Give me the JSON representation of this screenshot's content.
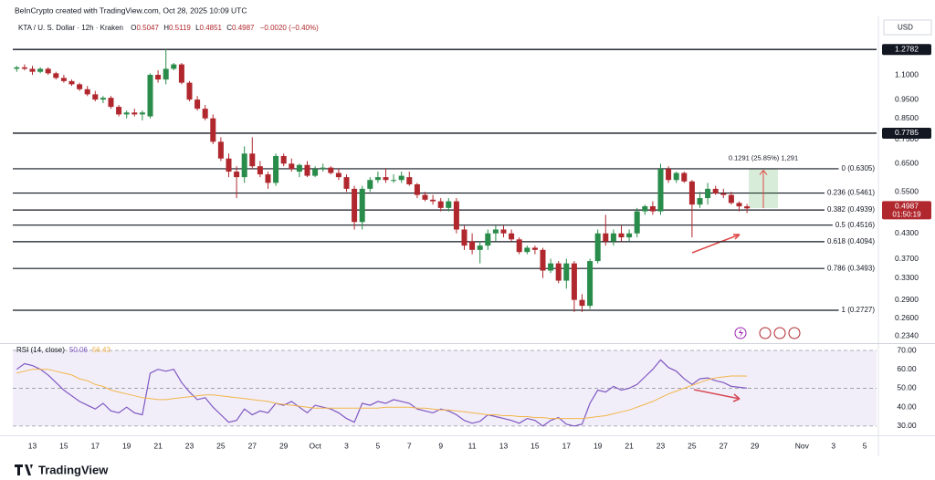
{
  "header": {
    "credit": "BeInCrypto created with TradingView.com, Oct 28, 2025 10:09 UTC",
    "symbol": "KTA / U. S. Dollar · 12h · Kraken",
    "ohlc": [
      {
        "key": "O",
        "value": "0.5047"
      },
      {
        "key": "H",
        "value": "0.5119"
      },
      {
        "key": "L",
        "value": "0.4851"
      },
      {
        "key": "C",
        "value": "0.4987"
      }
    ],
    "change": "−0.0020 (−0.40%)",
    "currency": "USD"
  },
  "footer": {
    "brand": "TradingView"
  },
  "chart_data": [
    {
      "type": "candlestick",
      "log_scale": true,
      "up_color": "#2a8c4a",
      "down_color": "#b0282e",
      "xlim": [
        -0.5,
        109.5
      ],
      "xticks": [
        {
          "value": 2,
          "label": "13"
        },
        {
          "value": 6,
          "label": "15"
        },
        {
          "value": 10,
          "label": "17"
        },
        {
          "value": 14,
          "label": "19"
        },
        {
          "value": 18,
          "label": "21"
        },
        {
          "value": 22,
          "label": "23"
        },
        {
          "value": 26,
          "label": "25"
        },
        {
          "value": 30,
          "label": "27"
        },
        {
          "value": 34,
          "label": "29"
        },
        {
          "value": 38,
          "label": "Oct"
        },
        {
          "value": 42,
          "label": "3"
        },
        {
          "value": 46,
          "label": "5"
        },
        {
          "value": 50,
          "label": "7"
        },
        {
          "value": 54,
          "label": "9"
        },
        {
          "value": 58,
          "label": "11"
        },
        {
          "value": 62,
          "label": "13"
        },
        {
          "value": 66,
          "label": "15"
        },
        {
          "value": 70,
          "label": "17"
        },
        {
          "value": 74,
          "label": "19"
        },
        {
          "value": 78,
          "label": "21"
        },
        {
          "value": 82,
          "label": "23"
        },
        {
          "value": 86,
          "label": "25"
        },
        {
          "value": 90,
          "label": "27"
        },
        {
          "value": 94,
          "label": "29"
        },
        {
          "value": 100,
          "label": "Nov"
        },
        {
          "value": 104,
          "label": "3"
        },
        {
          "value": 108,
          "label": "5"
        }
      ],
      "ylim": [
        0.2257,
        1.538
      ],
      "yticks": [
        {
          "value": 1.1,
          "label": "1.1000"
        },
        {
          "value": 0.95,
          "label": "0.9500"
        },
        {
          "value": 0.85,
          "label": "0.8500"
        },
        {
          "value": 0.75,
          "label": "0.7500"
        },
        {
          "value": 0.65,
          "label": "0.6500"
        },
        {
          "value": 0.55,
          "label": "0.5500"
        },
        {
          "value": 0.43,
          "label": "0.4300"
        },
        {
          "value": 0.37,
          "label": "0.3700"
        },
        {
          "value": 0.33,
          "label": "0.3300"
        },
        {
          "value": 0.29,
          "label": "0.2900"
        },
        {
          "value": 0.26,
          "label": "0.2600"
        },
        {
          "value": 0.234,
          "label": "0.2340"
        }
      ],
      "lines": [
        1.2782,
        0.7785
      ],
      "fib_levels": [
        {
          "value": 0.6305,
          "label": "0 (0.6305)"
        },
        {
          "value": 0.5461,
          "label": "0.236 (0.5461)"
        },
        {
          "value": 0.4939,
          "label": "0.382 (0.4939)"
        },
        {
          "value": 0.4516,
          "label": "0.5 (0.4516)"
        },
        {
          "value": 0.4094,
          "label": "0.618 (0.4094)"
        },
        {
          "value": 0.3493,
          "label": "0.786 (0.3493)"
        },
        {
          "value": 0.2727,
          "label": "1 (0.2727)"
        }
      ],
      "last_price": 0.4987,
      "countdown": "01:50:19",
      "measure": {
        "label": "0.1291 (25.85%) 1,291",
        "range": [
          0.4994,
          0.6285
        ]
      },
      "open": [
        1.14,
        1.15,
        1.14,
        1.12,
        1.14,
        1.11,
        1.08,
        1.06,
        1.04,
        1.01,
        0.98,
        0.95,
        0.96,
        0.91,
        0.87,
        0.88,
        0.87,
        0.86,
        1.1,
        1.07,
        1.14,
        1.17,
        1.05,
        0.95,
        0.9,
        0.85,
        0.74,
        0.67,
        0.62,
        0.6,
        0.69,
        0.64,
        0.61,
        0.58,
        0.68,
        0.65,
        0.62,
        0.645,
        0.605,
        0.63,
        0.635,
        0.615,
        0.6,
        0.56,
        0.46,
        0.56,
        0.59,
        0.6,
        0.59,
        0.59,
        0.6,
        0.575,
        0.54,
        0.525,
        0.52,
        0.5,
        0.52,
        0.44,
        0.41,
        0.39,
        0.4,
        0.43,
        0.44,
        0.43,
        0.415,
        0.385,
        0.395,
        0.39,
        0.345,
        0.36,
        0.325,
        0.36,
        0.29,
        0.28,
        0.365,
        0.43,
        0.41,
        0.43,
        0.42,
        0.43,
        0.49,
        0.505,
        0.49,
        0.63,
        0.59,
        0.615,
        0.585,
        0.51,
        0.53,
        0.56,
        0.545,
        0.54,
        0.515,
        0.5047
      ],
      "high": [
        1.16,
        1.17,
        1.16,
        1.15,
        1.15,
        1.12,
        1.1,
        1.07,
        1.05,
        1.03,
        1.0,
        0.97,
        0.97,
        0.92,
        0.89,
        0.9,
        0.89,
        1.11,
        1.13,
        1.28,
        1.18,
        1.18,
        1.06,
        0.97,
        0.92,
        0.87,
        0.76,
        0.69,
        0.64,
        0.72,
        0.76,
        0.66,
        0.62,
        0.69,
        0.69,
        0.67,
        0.65,
        0.66,
        0.64,
        0.65,
        0.64,
        0.63,
        0.61,
        0.57,
        0.57,
        0.6,
        0.62,
        0.63,
        0.61,
        0.62,
        0.62,
        0.58,
        0.55,
        0.54,
        0.53,
        0.53,
        0.53,
        0.45,
        0.43,
        0.41,
        0.44,
        0.45,
        0.45,
        0.44,
        0.42,
        0.4,
        0.4,
        0.395,
        0.37,
        0.365,
        0.37,
        0.365,
        0.3,
        0.37,
        0.44,
        0.48,
        0.44,
        0.45,
        0.44,
        0.5,
        0.51,
        0.52,
        0.65,
        0.64,
        0.62,
        0.62,
        0.59,
        0.55,
        0.58,
        0.57,
        0.56,
        0.55,
        0.52,
        0.5119
      ],
      "low": [
        1.12,
        1.13,
        1.1,
        1.11,
        1.1,
        1.07,
        1.05,
        1.03,
        1.0,
        0.97,
        0.94,
        0.93,
        0.9,
        0.86,
        0.85,
        0.86,
        0.84,
        0.85,
        1.05,
        1.04,
        1.13,
        1.04,
        0.94,
        0.89,
        0.84,
        0.73,
        0.66,
        0.6,
        0.53,
        0.58,
        0.63,
        0.6,
        0.56,
        0.57,
        0.64,
        0.62,
        0.6,
        0.6,
        0.6,
        0.62,
        0.61,
        0.59,
        0.55,
        0.44,
        0.44,
        0.55,
        0.58,
        0.58,
        0.58,
        0.58,
        0.57,
        0.53,
        0.52,
        0.51,
        0.49,
        0.49,
        0.43,
        0.39,
        0.38,
        0.36,
        0.39,
        0.41,
        0.42,
        0.41,
        0.38,
        0.38,
        0.38,
        0.33,
        0.34,
        0.32,
        0.31,
        0.27,
        0.27,
        0.275,
        0.36,
        0.4,
        0.4,
        0.41,
        0.41,
        0.42,
        0.48,
        0.48,
        0.48,
        0.58,
        0.58,
        0.58,
        0.42,
        0.5,
        0.51,
        0.54,
        0.53,
        0.51,
        0.49,
        0.4851
      ],
      "close": [
        1.15,
        1.14,
        1.12,
        1.14,
        1.11,
        1.08,
        1.06,
        1.04,
        1.01,
        0.98,
        0.95,
        0.96,
        0.91,
        0.87,
        0.88,
        0.87,
        0.88,
        1.1,
        1.07,
        1.14,
        1.17,
        1.05,
        0.95,
        0.9,
        0.85,
        0.74,
        0.67,
        0.62,
        0.6,
        0.69,
        0.64,
        0.61,
        0.58,
        0.68,
        0.65,
        0.63,
        0.645,
        0.605,
        0.63,
        0.635,
        0.615,
        0.6,
        0.56,
        0.46,
        0.56,
        0.59,
        0.6,
        0.59,
        0.59,
        0.605,
        0.575,
        0.54,
        0.525,
        0.52,
        0.5,
        0.52,
        0.44,
        0.4,
        0.39,
        0.4,
        0.43,
        0.44,
        0.43,
        0.415,
        0.385,
        0.395,
        0.39,
        0.345,
        0.36,
        0.325,
        0.36,
        0.29,
        0.28,
        0.365,
        0.43,
        0.41,
        0.43,
        0.42,
        0.43,
        0.49,
        0.505,
        0.49,
        0.63,
        0.59,
        0.615,
        0.585,
        0.51,
        0.53,
        0.56,
        0.545,
        0.54,
        0.515,
        0.5047,
        0.4987
      ]
    },
    {
      "type": "line",
      "title": "RSI (14, close)",
      "ylim": [
        25.6,
        72.9
      ],
      "yticks": [
        {
          "value": 70,
          "label": "70.00"
        },
        {
          "value": 60,
          "label": "60.00"
        },
        {
          "value": 50,
          "label": "50.00"
        },
        {
          "value": 40,
          "label": "40.00"
        },
        {
          "value": 30,
          "label": "30.00"
        }
      ],
      "band": [
        30,
        70
      ],
      "band_color": "#7e57c2",
      "levels": [
        70,
        50,
        30
      ],
      "series": [
        {
          "color": "#7e57c2",
          "last_label": "50.06",
          "values": [
            60,
            63,
            62,
            60,
            57,
            53,
            49,
            46,
            43,
            41,
            39,
            42,
            38,
            37,
            40,
            37,
            36,
            58,
            60,
            59,
            60,
            53,
            48,
            44,
            45,
            40,
            36,
            32,
            33,
            39,
            36,
            38,
            37,
            42,
            41,
            43,
            40,
            37,
            41,
            40,
            39,
            37,
            34,
            32,
            42,
            41,
            43,
            42,
            44,
            43,
            42,
            39,
            38,
            37,
            39,
            38,
            36,
            33,
            31.5,
            32.5,
            36,
            35,
            34,
            33,
            31.5,
            34,
            33,
            30,
            33,
            34.5,
            31,
            30,
            31,
            42,
            49,
            48,
            51,
            49,
            50,
            52,
            56,
            60,
            65,
            61,
            59,
            55,
            52,
            55,
            55.5,
            54,
            53,
            51,
            50.5,
            50.06
          ]
        },
        {
          "color": "#f2b54a",
          "last_label": "56.43",
          "values": [
            58,
            59,
            60,
            60,
            60,
            59,
            58,
            57,
            55,
            54,
            52,
            51,
            49,
            48,
            47,
            46,
            45,
            44.5,
            44,
            44,
            44.5,
            45,
            45.5,
            46,
            46.5,
            46.5,
            46,
            45.5,
            45,
            44.5,
            44,
            43.5,
            43,
            42,
            41.5,
            41,
            40.5,
            40,
            39.5,
            39.5,
            39.5,
            39.5,
            39.5,
            39.5,
            39.5,
            39.5,
            39.5,
            40,
            40,
            40,
            40,
            39.5,
            39.5,
            39,
            38.5,
            38.5,
            38,
            37.5,
            37,
            36.5,
            36,
            36,
            35.5,
            35.5,
            35,
            35,
            34.5,
            34.5,
            34,
            34,
            34,
            34,
            34,
            34.5,
            35,
            35.5,
            36.5,
            37.5,
            38.5,
            40,
            41.5,
            43,
            45,
            47,
            48.5,
            50,
            51.5,
            53,
            54.5,
            55.5,
            56,
            56.5,
            56.5,
            56.43
          ]
        }
      ]
    }
  ]
}
